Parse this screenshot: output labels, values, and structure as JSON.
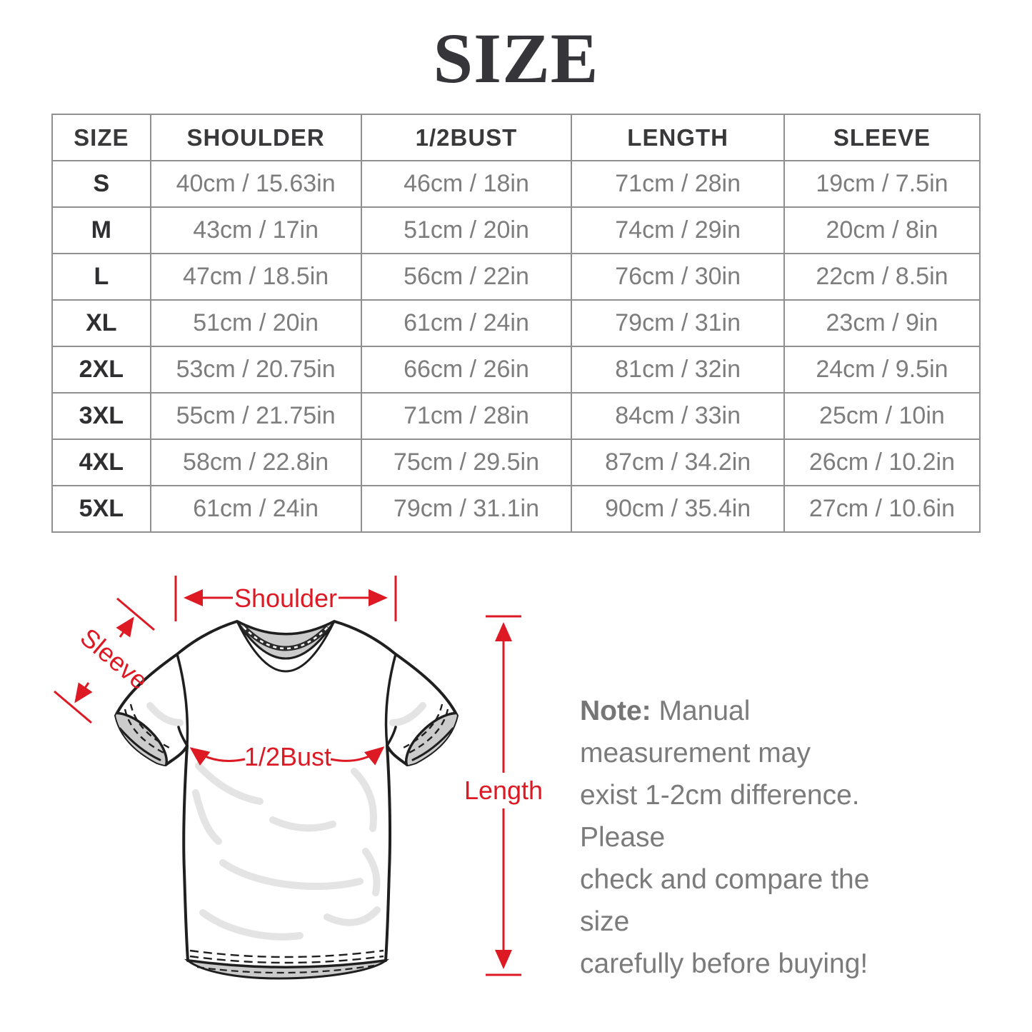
{
  "title": "SIZE",
  "table": {
    "headers": [
      "SIZE",
      "SHOULDER",
      "1/2BUST",
      "LENGTH",
      "SLEEVE"
    ],
    "column_keys": [
      "size",
      "shoulder",
      "bust",
      "length",
      "sleeve"
    ],
    "rows": [
      {
        "size": "S",
        "shoulder": "40cm / 15.63in",
        "bust": "46cm / 18in",
        "length": "71cm / 28in",
        "sleeve": "19cm / 7.5in"
      },
      {
        "size": "M",
        "shoulder": "43cm / 17in",
        "bust": "51cm / 20in",
        "length": "74cm / 29in",
        "sleeve": "20cm / 8in"
      },
      {
        "size": "L",
        "shoulder": "47cm / 18.5in",
        "bust": "56cm / 22in",
        "length": "76cm / 30in",
        "sleeve": "22cm / 8.5in"
      },
      {
        "size": "XL",
        "shoulder": "51cm / 20in",
        "bust": "61cm / 24in",
        "length": "79cm / 31in",
        "sleeve": "23cm / 9in"
      },
      {
        "size": "2XL",
        "shoulder": "53cm / 20.75in",
        "bust": "66cm / 26in",
        "length": "81cm / 32in",
        "sleeve": "24cm / 9.5in"
      },
      {
        "size": "3XL",
        "shoulder": "55cm / 21.75in",
        "bust": "71cm / 28in",
        "length": "84cm / 33in",
        "sleeve": "25cm / 10in"
      },
      {
        "size": "4XL",
        "shoulder": "58cm / 22.8in",
        "bust": "75cm / 29.5in",
        "length": "87cm / 34.2in",
        "sleeve": "26cm / 10.2in"
      },
      {
        "size": "5XL",
        "shoulder": "61cm / 24in",
        "bust": "79cm / 31.1in",
        "length": "90cm / 35.4in",
        "sleeve": "27cm / 10.6in"
      }
    ]
  },
  "diagram": {
    "shoulder_label": "Shoulder",
    "sleeve_label": "Sleeve",
    "bust_label": "1/2Bust",
    "length_label": "Length"
  },
  "note": {
    "prefix": "Note:",
    "lines": [
      "Manual measurement may",
      "exist 1-2cm difference. Please",
      "check and compare the size",
      "carefully before buying!"
    ]
  },
  "colors": {
    "annotation_red": "#dd1a24",
    "table_border": "#909090",
    "header_text": "#39393b",
    "value_text": "#7d7d7d",
    "note_text": "#7b7b7b",
    "shirt_outline": "#1f1f1f",
    "shirt_gray": "#cbcbcb",
    "wrinkle_gray": "#e4e4e4"
  }
}
